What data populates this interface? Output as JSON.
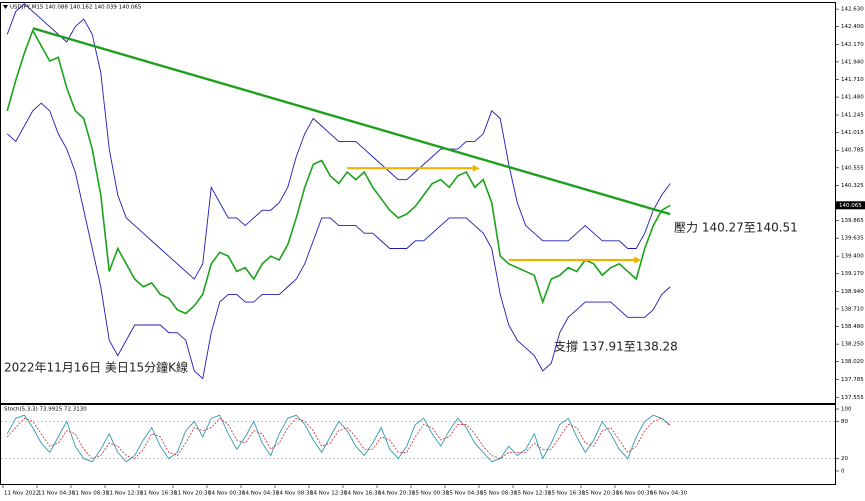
{
  "chart_data": [
    {
      "type": "line",
      "title": "USDJPY,M15 140.088 140.162 140.039 140.065",
      "annotations": [
        "壓力 140.27至140.51",
        "支撐 137.91至138.28",
        "2022年11月16日 美日15分鐘K線"
      ],
      "categories": [
        "11 Nov 2022",
        null,
        null,
        null,
        "11 Nov 04:30",
        null,
        null,
        null,
        "11 Nov 08:30",
        null,
        null,
        null,
        "11 Nov 12:30",
        null,
        null,
        null,
        "11 Nov 16:30",
        null,
        null,
        null,
        "11 Nov 20:30",
        null,
        null,
        null,
        "14 Nov 00:30",
        null,
        null,
        null,
        "14 Nov 04:30",
        null,
        null,
        null,
        "14 Nov 08:30",
        null,
        null,
        null,
        "14 Nov 12:30",
        null,
        null,
        null,
        "14 Nov 16:30",
        null,
        null,
        null,
        "14 Nov 20:30",
        null,
        null,
        null,
        "15 Nov 00:30",
        null,
        null,
        null,
        "15 Nov 04:30",
        null,
        null,
        null,
        "15 Nov 08:30",
        null,
        null,
        null,
        "15 Nov 12:30",
        null,
        null,
        null,
        "15 Nov 16:30",
        null,
        null,
        null,
        "15 Nov 20:30",
        null,
        null,
        null,
        "16 Nov 00:30",
        null,
        null,
        null,
        "16 Nov 04:30",
        null,
        null,
        null
      ],
      "series": [
        {
          "color": "#1aa31a",
          "values": [
            141.3,
            141.7,
            142.05,
            142.35,
            142.15,
            141.95,
            142.0,
            141.6,
            141.3,
            141.2,
            140.8,
            140.2,
            139.2,
            139.5,
            139.3,
            139.1,
            139.0,
            139.05,
            138.9,
            138.85,
            138.7,
            138.65,
            138.75,
            138.9,
            139.3,
            139.45,
            139.4,
            139.2,
            139.25,
            139.1,
            139.3,
            139.4,
            139.35,
            139.55,
            139.9,
            140.3,
            140.6,
            140.65,
            140.45,
            140.35,
            140.5,
            140.4,
            140.5,
            140.3,
            140.15,
            140.0,
            139.9,
            139.95,
            140.05,
            140.2,
            140.35,
            140.4,
            140.3,
            140.45,
            140.5,
            140.3,
            140.4,
            140.1,
            139.4,
            139.3,
            139.25,
            139.2,
            139.15,
            138.8,
            139.1,
            139.15,
            139.25,
            139.2,
            139.35,
            139.3,
            139.15,
            139.25,
            139.3,
            139.2,
            139.1,
            139.5,
            139.8,
            140.0,
            140.065,
            null
          ]
        },
        {
          "color": "#1c1cb4",
          "values": [
            142.3,
            142.6,
            142.7,
            142.6,
            142.5,
            142.4,
            142.3,
            142.2,
            142.4,
            142.5,
            142.3,
            141.8,
            140.8,
            140.2,
            139.9,
            139.8,
            139.7,
            139.6,
            139.5,
            139.4,
            139.3,
            139.2,
            139.1,
            139.3,
            140.3,
            140.1,
            139.9,
            139.9,
            139.8,
            139.9,
            140.0,
            140.0,
            140.1,
            140.3,
            140.7,
            141.0,
            141.2,
            141.1,
            141.0,
            140.9,
            140.9,
            140.9,
            140.8,
            140.7,
            140.6,
            140.5,
            140.4,
            140.4,
            140.5,
            140.6,
            140.7,
            140.8,
            140.8,
            140.8,
            140.9,
            140.9,
            141.0,
            141.3,
            141.2,
            140.6,
            140.1,
            139.8,
            139.7,
            139.6,
            139.6,
            139.6,
            139.6,
            139.7,
            139.8,
            139.7,
            139.6,
            139.6,
            139.6,
            139.5,
            139.5,
            139.7,
            140.0,
            140.2,
            140.35,
            null
          ]
        },
        {
          "color": "#1c1cb4",
          "values": [
            141.0,
            140.9,
            141.1,
            141.3,
            141.4,
            141.3,
            141.0,
            140.8,
            140.5,
            140.0,
            139.5,
            139.0,
            138.3,
            138.1,
            138.3,
            138.5,
            138.5,
            138.5,
            138.5,
            138.4,
            138.4,
            138.3,
            137.9,
            137.8,
            138.4,
            138.8,
            138.9,
            138.9,
            138.8,
            138.8,
            138.9,
            138.9,
            138.9,
            139.0,
            139.1,
            139.3,
            139.6,
            139.9,
            139.9,
            139.8,
            139.8,
            139.8,
            139.7,
            139.7,
            139.6,
            139.5,
            139.5,
            139.5,
            139.6,
            139.6,
            139.7,
            139.8,
            139.9,
            139.9,
            139.9,
            139.8,
            139.7,
            139.5,
            138.9,
            138.5,
            138.3,
            138.2,
            138.1,
            137.9,
            138.0,
            138.4,
            138.6,
            138.7,
            138.8,
            138.8,
            138.8,
            138.8,
            138.7,
            138.6,
            138.6,
            138.6,
            138.7,
            138.9,
            139.0,
            null
          ]
        }
      ],
      "trendline": {
        "x": [
          3,
          78
        ],
        "values": [
          142.38,
          139.95
        ],
        "color": "#1ea01e"
      },
      "arrows": [
        {
          "x": [
            40,
            55
          ],
          "values": [
            140.55,
            140.55
          ],
          "color": "#f0b400"
        },
        {
          "x": [
            59,
            74
          ],
          "values": [
            139.35,
            139.35
          ],
          "color": "#f0b400"
        }
      ],
      "last_price": 140.065,
      "ylim": [
        137.48,
        142.71
      ],
      "yticks": [
        {
          "value": 142.63,
          "label": "142.630"
        },
        {
          "value": 142.4,
          "label": "142.400"
        },
        {
          "value": 142.17,
          "label": "142.170"
        },
        {
          "value": 141.94,
          "label": "141.940"
        },
        {
          "value": 141.71,
          "label": "141.710"
        },
        {
          "value": 141.48,
          "label": "141.480"
        },
        141.245,
        141.015,
        140.785,
        140.555,
        140.325,
        139.865,
        139.635,
        {
          "value": 139.4,
          "label": "139.400"
        },
        {
          "value": 139.17,
          "label": "139.170"
        },
        {
          "value": 138.94,
          "label": "138.940"
        },
        {
          "value": 138.71,
          "label": "138.710"
        },
        {
          "value": 138.48,
          "label": "138.480"
        },
        {
          "value": 138.25,
          "label": "138.250"
        },
        {
          "value": 138.02,
          "label": "138.020"
        },
        137.785,
        137.555
      ]
    },
    {
      "type": "line",
      "title": "Stoch(5,3,3) 73.9925 72.3130",
      "series": [
        {
          "color": "#2f9bb0",
          "values": [
            60,
            85,
            90,
            70,
            45,
            30,
            55,
            80,
            40,
            20,
            15,
            35,
            60,
            30,
            15,
            25,
            50,
            70,
            40,
            20,
            30,
            65,
            80,
            55,
            85,
            90,
            60,
            35,
            55,
            80,
            45,
            25,
            60,
            85,
            90,
            75,
            50,
            30,
            55,
            80,
            65,
            40,
            25,
            45,
            70,
            35,
            20,
            40,
            75,
            85,
            60,
            40,
            65,
            85,
            70,
            45,
            30,
            15,
            20,
            40,
            25,
            35,
            60,
            20,
            45,
            75,
            85,
            55,
            30,
            50,
            80,
            60,
            35,
            20,
            55,
            80,
            90,
            85,
            73.9925,
            null
          ]
        },
        {
          "color": "#d04040",
          "values": [
            55,
            70,
            85,
            80,
            60,
            40,
            45,
            65,
            60,
            35,
            20,
            25,
            45,
            40,
            25,
            20,
            35,
            60,
            55,
            30,
            25,
            45,
            70,
            65,
            70,
            85,
            75,
            50,
            45,
            65,
            60,
            35,
            45,
            70,
            85,
            80,
            65,
            40,
            45,
            65,
            70,
            55,
            35,
            35,
            55,
            50,
            30,
            30,
            55,
            75,
            70,
            50,
            55,
            75,
            75,
            60,
            40,
            25,
            20,
            30,
            30,
            30,
            45,
            35,
            35,
            55,
            75,
            70,
            45,
            40,
            65,
            70,
            50,
            30,
            40,
            65,
            80,
            85,
            72.313,
            null
          ]
        }
      ],
      "ylim": [
        0,
        100
      ],
      "yticks": [
        100,
        80,
        20,
        0
      ]
    }
  ]
}
